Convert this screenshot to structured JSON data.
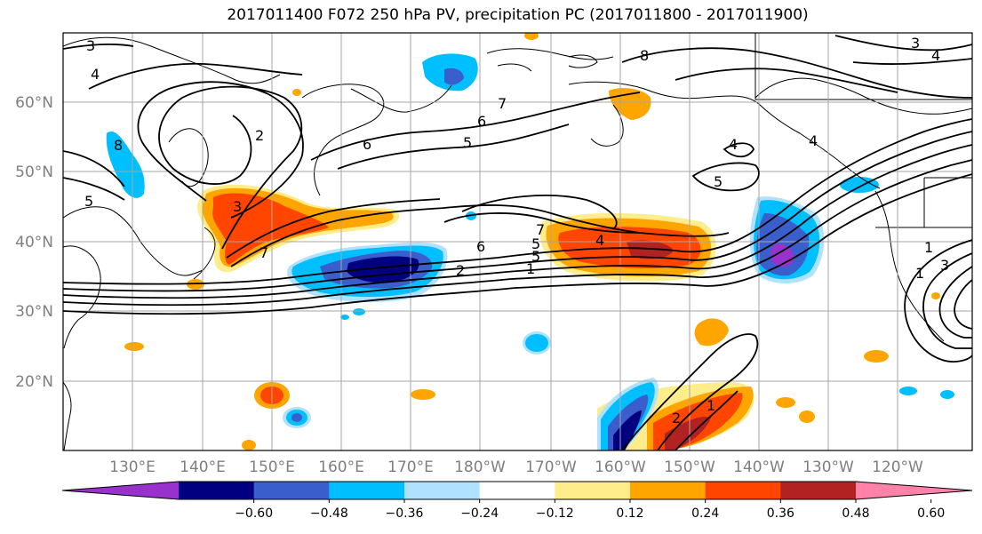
{
  "title": "2017011400 F072 250 hPa PV, precipitation PC (2017011800 - 2017011900)",
  "lat_labels": [
    "60°N",
    "50°N",
    "40°N",
    "30°N",
    "20°N"
  ],
  "lon_labels": [
    "130°E",
    "140°E",
    "150°E",
    "160°E",
    "170°E",
    "180°W",
    "170°W",
    "160°W",
    "150°W",
    "140°W",
    "130°W",
    "120°W"
  ],
  "colorbar": {
    "colors": [
      "#9932cc",
      "#000080",
      "#3a5fcd",
      "#00bfff",
      "#b0e2ff",
      "#ffffff",
      "#ffec8b",
      "#ffa500",
      "#ff4500",
      "#b22222",
      "#ff82ab"
    ],
    "tick_labels": [
      "−0.60",
      "−0.48",
      "−0.36",
      "−0.24",
      "−0.12",
      "0.12",
      "0.24",
      "0.36",
      "0.48",
      "0.60"
    ]
  },
  "pv_contour_labels": [
    "3",
    "4",
    "6",
    "7",
    "8",
    "2",
    "5",
    "6",
    "5",
    "3",
    "7",
    "4",
    "5",
    "4",
    "5",
    "7",
    "6",
    "5",
    "3",
    "2",
    "1",
    "4",
    "3",
    "1",
    "1",
    "2",
    "1",
    "2",
    "3",
    "3",
    "4",
    "8"
  ]
}
